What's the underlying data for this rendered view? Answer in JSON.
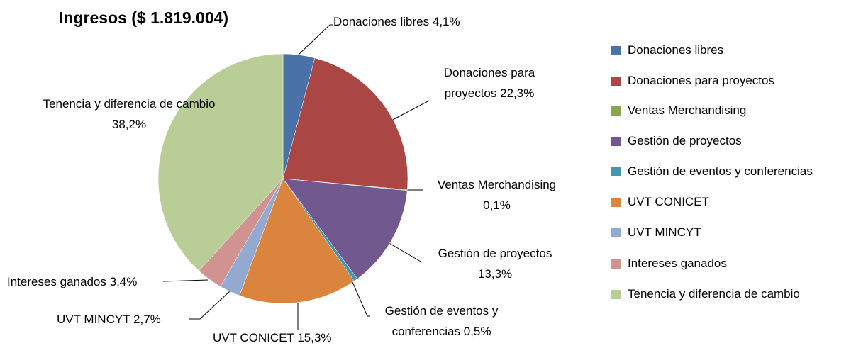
{
  "chart_data": {
    "type": "pie",
    "title": "Ingresos ($ 1.819.004)",
    "categories": [
      "Donaciones libres",
      "Donaciones para proyectos",
      "Ventas Merchandising",
      "Gestión de proyectos",
      "Gestión de eventos y conferencias",
      "UVT CONICET",
      "UVT MINCYT",
      "Intereses ganados",
      "Tenencia y diferencia de cambio"
    ],
    "values": [
      4.1,
      22.3,
      0.1,
      13.3,
      0.5,
      15.3,
      2.7,
      3.4,
      38.2
    ],
    "value_labels": [
      "4,1%",
      "22,3%",
      "0,1%",
      "13,3%",
      "0,5%",
      "15,3%",
      "2,7%",
      "3,4%",
      "38,2%"
    ],
    "colors": [
      "#4a72a8",
      "#aa4643",
      "#89a54e",
      "#71588f",
      "#4198af",
      "#db843d",
      "#93a9cf",
      "#d19392",
      "#b9cd96"
    ],
    "legend": "right"
  }
}
